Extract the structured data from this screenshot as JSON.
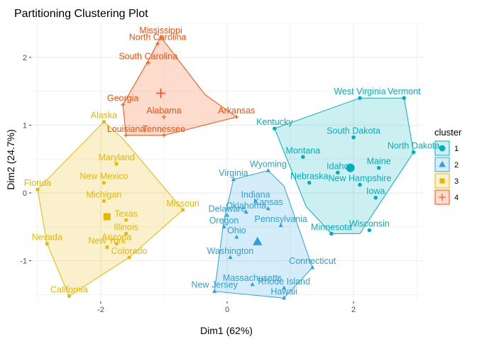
{
  "chart_data": {
    "type": "scatter",
    "title": "Partitioning Clustering Plot",
    "xlabel": "Dim1 (62%)",
    "ylabel": "Dim2 (24.7%)",
    "xlim": [
      -3.1,
      3.1
    ],
    "ylim": [
      -1.6,
      2.5
    ],
    "x_ticks": [
      -2,
      0,
      2
    ],
    "y_ticks": [
      -1,
      0,
      1,
      2
    ],
    "grid": true,
    "legend": {
      "title": "cluster",
      "position": "right"
    },
    "series": [
      {
        "name": "1",
        "color": "#00AFBB",
        "marker": "circle",
        "hull": [
          [
            2.95,
            0.6
          ],
          [
            2.8,
            1.4
          ],
          [
            2.1,
            1.4
          ],
          [
            0.75,
            0.95
          ],
          [
            1.25,
            -0.2
          ],
          [
            1.65,
            -0.6
          ],
          [
            2.1,
            -0.6
          ]
        ],
        "center": [
          1.95,
          0.37
        ],
        "points": [
          {
            "label": "West Virginia",
            "x": 2.1,
            "y": 1.4
          },
          {
            "label": "Vermont",
            "x": 2.8,
            "y": 1.4
          },
          {
            "label": "Kentucky",
            "x": 0.75,
            "y": 0.95
          },
          {
            "label": "South Dakota",
            "x": 2.0,
            "y": 0.82
          },
          {
            "label": "North Dakota",
            "x": 2.95,
            "y": 0.6
          },
          {
            "label": "Montana",
            "x": 1.2,
            "y": 0.53
          },
          {
            "label": "Maine",
            "x": 2.4,
            "y": 0.37
          },
          {
            "label": "Idaho",
            "x": 1.75,
            "y": 0.3
          },
          {
            "label": "New Hampshire",
            "x": 2.1,
            "y": 0.12
          },
          {
            "label": "Nebraska",
            "x": 1.3,
            "y": 0.15
          },
          {
            "label": "Iowa",
            "x": 2.35,
            "y": -0.07
          },
          {
            "label": "Wisconsin",
            "x": 2.25,
            "y": -0.55
          },
          {
            "label": "Minnesota",
            "x": 1.65,
            "y": -0.6
          }
        ]
      },
      {
        "name": "2",
        "color": "#2E9FDF",
        "marker": "triangle",
        "hull": [
          [
            0.1,
            0.2
          ],
          [
            0.65,
            0.33
          ],
          [
            0.9,
            0.1
          ],
          [
            1.35,
            -1.1
          ],
          [
            0.9,
            -1.55
          ],
          [
            -0.2,
            -1.45
          ],
          [
            -0.05,
            -0.4
          ]
        ],
        "center": [
          0.48,
          -0.72
        ],
        "points": [
          {
            "label": "Wyoming",
            "x": 0.65,
            "y": 0.33
          },
          {
            "label": "Virginia",
            "x": 0.1,
            "y": 0.2
          },
          {
            "label": "Indiana",
            "x": 0.45,
            "y": -0.12
          },
          {
            "label": "Kansas",
            "x": 0.65,
            "y": -0.23
          },
          {
            "label": "Oklahoma",
            "x": 0.3,
            "y": -0.28
          },
          {
            "label": "Delaware",
            "x": 0.0,
            "y": -0.33
          },
          {
            "label": "Oregon",
            "x": -0.05,
            "y": -0.5
          },
          {
            "label": "Pennsylvania",
            "x": 0.85,
            "y": -0.48
          },
          {
            "label": "Ohio",
            "x": 0.15,
            "y": -0.65
          },
          {
            "label": "Washington",
            "x": 0.05,
            "y": -0.95
          },
          {
            "label": "Connecticut",
            "x": 1.35,
            "y": -1.1
          },
          {
            "label": "New Jersey",
            "x": -0.2,
            "y": -1.45
          },
          {
            "label": "Massachusetts",
            "x": 0.4,
            "y": -1.35
          },
          {
            "label": "Rhode Island",
            "x": 0.9,
            "y": -1.4
          },
          {
            "label": "Hawaii",
            "x": 0.9,
            "y": -1.55
          }
        ]
      },
      {
        "name": "3",
        "color": "#E7B800",
        "marker": "square",
        "hull": [
          [
            -1.95,
            1.05
          ],
          [
            -1.65,
            0.8
          ],
          [
            -0.7,
            -0.25
          ],
          [
            -1.55,
            -0.95
          ],
          [
            -2.5,
            -1.52
          ],
          [
            -2.85,
            -0.75
          ],
          [
            -3.0,
            0.05
          ]
        ],
        "center": [
          -1.9,
          -0.35
        ],
        "points": [
          {
            "label": "Alaska",
            "x": -1.95,
            "y": 1.05
          },
          {
            "label": "Maryland",
            "x": -1.75,
            "y": 0.43
          },
          {
            "label": "New Mexico",
            "x": -1.95,
            "y": 0.15
          },
          {
            "label": "Michigan",
            "x": -1.95,
            "y": -0.12
          },
          {
            "label": "Florida",
            "x": -3.0,
            "y": 0.05
          },
          {
            "label": "Missouri",
            "x": -0.7,
            "y": -0.25
          },
          {
            "label": "Texas",
            "x": -1.6,
            "y": -0.4
          },
          {
            "label": "Illinois",
            "x": -1.6,
            "y": -0.6
          },
          {
            "label": "Arizona",
            "x": -1.75,
            "y": -0.75
          },
          {
            "label": "New York",
            "x": -1.9,
            "y": -0.8
          },
          {
            "label": "Colorado",
            "x": -1.55,
            "y": -0.95
          },
          {
            "label": "Nevada",
            "x": -2.85,
            "y": -0.75
          },
          {
            "label": "California",
            "x": -2.5,
            "y": -1.52
          }
        ]
      },
      {
        "name": "4",
        "color": "#FC4E07",
        "marker": "cross",
        "hull": [
          [
            -1.05,
            2.3
          ],
          [
            -0.35,
            1.45
          ],
          [
            0.15,
            1.12
          ],
          [
            -1.0,
            0.85
          ],
          [
            -1.6,
            0.85
          ],
          [
            -1.65,
            1.3
          ],
          [
            -1.25,
            1.95
          ]
        ],
        "center": [
          -1.05,
          1.47
        ],
        "points": [
          {
            "label": "Mississippi",
            "x": -1.05,
            "y": 2.3
          },
          {
            "label": "North Carolina",
            "x": -1.1,
            "y": 2.2
          },
          {
            "label": "South Carolina",
            "x": -1.25,
            "y": 1.92
          },
          {
            "label": "Georgia",
            "x": -1.65,
            "y": 1.3
          },
          {
            "label": "Alabama",
            "x": -1.0,
            "y": 1.12
          },
          {
            "label": "Arkansas",
            "x": 0.15,
            "y": 1.12
          },
          {
            "label": "Louisiana",
            "x": -1.6,
            "y": 0.85
          },
          {
            "label": "Tennessee",
            "x": -1.0,
            "y": 0.85
          }
        ]
      }
    ]
  }
}
